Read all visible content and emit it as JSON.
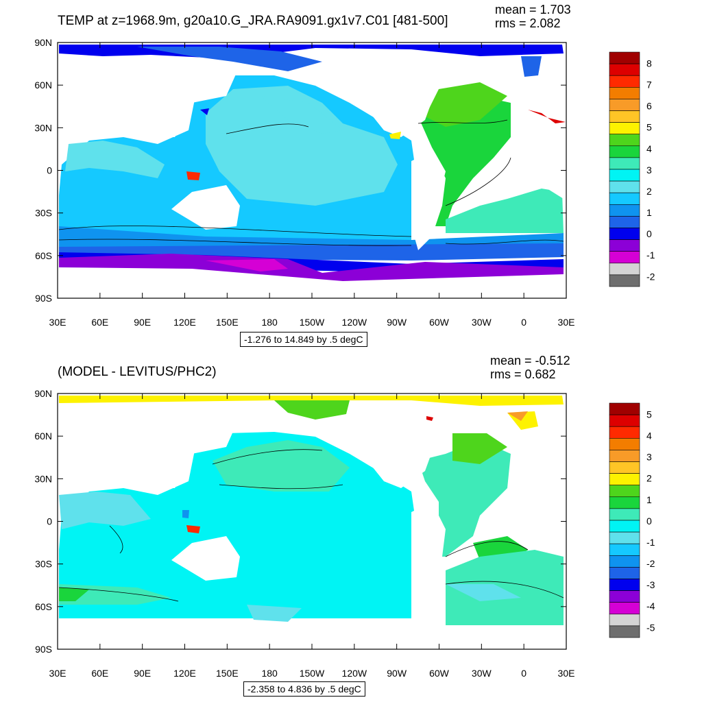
{
  "chart_data": [
    {
      "type": "heatmap",
      "title": "TEMP at z=1968.9m, g20a10.G_JRA.RA9091.gx1v7.C01 [481-500]",
      "stats": {
        "mean": "mean = 1.703",
        "rms": "rms = 2.082"
      },
      "range_label": "-1.276 to 14.849 by .5 degC",
      "lat_ticks": [
        "90N",
        "60N",
        "30N",
        "0",
        "30S",
        "60S",
        "90S"
      ],
      "lon_ticks": [
        "30E",
        "60E",
        "90E",
        "120E",
        "150E",
        "180",
        "150W",
        "120W",
        "90W",
        "60W",
        "30W",
        "0",
        "30E"
      ],
      "colorbar": {
        "labels": [
          "8",
          "7",
          "6",
          "5",
          "4",
          "3",
          "2",
          "1",
          "0",
          "-1",
          "-2"
        ],
        "colors": [
          "#a00000",
          "#dd0000",
          "#ff2a00",
          "#f37d00",
          "#f89b28",
          "#ffc526",
          "#fdf200",
          "#4ed51c",
          "#1ad53c",
          "#3eeab8",
          "#00f4f4",
          "#5fe1ec",
          "#15c9ff",
          "#0f93ef",
          "#1e64e8",
          "#0000ee",
          "#8c00d7",
          "#d500d5",
          "#d4d4d4",
          "#6e6e6e"
        ]
      }
    },
    {
      "type": "heatmap",
      "title": "(MODEL - LEVITUS/PHC2)",
      "stats": {
        "mean": "mean = -0.512",
        "rms": "rms = 0.682"
      },
      "range_label": "-2.358 to 4.836 by .5 degC",
      "lat_ticks": [
        "90N",
        "60N",
        "30N",
        "0",
        "30S",
        "60S",
        "90S"
      ],
      "lon_ticks": [
        "30E",
        "60E",
        "90E",
        "120E",
        "150E",
        "180",
        "150W",
        "120W",
        "90W",
        "60W",
        "30W",
        "0",
        "30E"
      ],
      "colorbar": {
        "labels": [
          "5",
          "4",
          "3",
          "2",
          "1",
          "0",
          "-1",
          "-2",
          "-3",
          "-4",
          "-5"
        ],
        "colors": [
          "#a00000",
          "#dd0000",
          "#ff2a00",
          "#f37d00",
          "#f89b28",
          "#ffc526",
          "#fdf200",
          "#4ed51c",
          "#1ad53c",
          "#3eeab8",
          "#00f4f4",
          "#5fe1ec",
          "#15c9ff",
          "#0f93ef",
          "#1e64e8",
          "#0000ee",
          "#8c00d7",
          "#d500d5",
          "#d4d4d4",
          "#6e6e6e"
        ]
      }
    }
  ]
}
